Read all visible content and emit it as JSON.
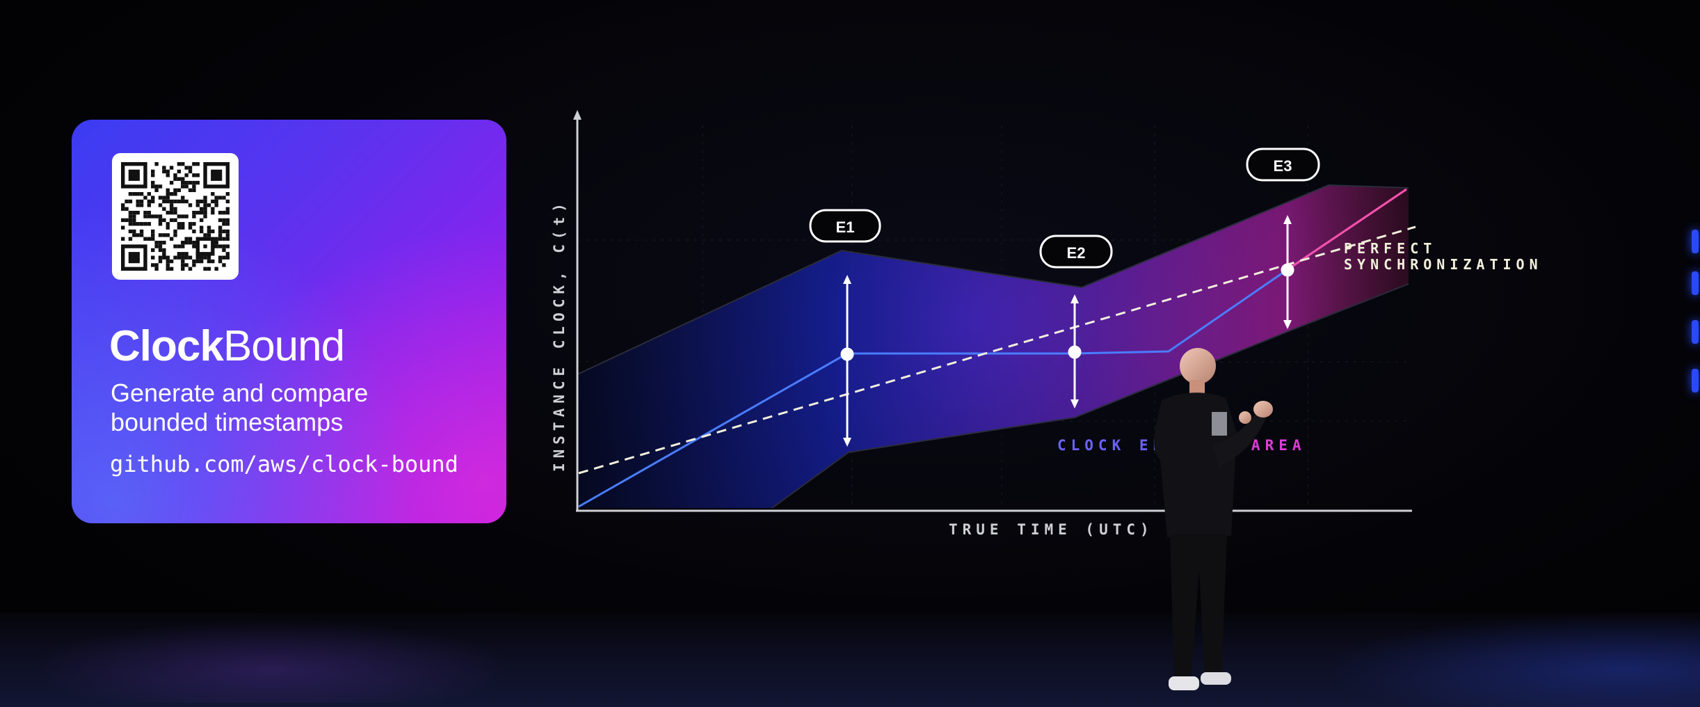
{
  "card": {
    "title_bold": "Clock",
    "title_regular": "Bound",
    "subtitle_line1": "Generate and compare",
    "subtitle_line2": "bounded timestamps",
    "link": "github.com/aws/clock-bound",
    "qr_icon": "qr-code-icon",
    "colors": {
      "gradient_start": "#3b3df2",
      "gradient_end": "#b118e6"
    }
  },
  "diagram": {
    "y_axis_label": "INSTANCE CLOCK, C(t)",
    "x_axis_label": "TRUE TIME (UTC)",
    "events": [
      {
        "label": "E1"
      },
      {
        "label": "E2"
      },
      {
        "label": "E3"
      }
    ],
    "perfect_sync_label_line1": "PERFECT",
    "perfect_sync_label_line2": "SYNCHRONIZATION",
    "area_label_left": "CLOCK ER",
    "area_label_right": "ND AREA",
    "colors": {
      "instance_clock": "#4a7dff",
      "perfect_sync": "#f2f0dc",
      "area_blue": "#2b3cf0",
      "area_magenta": "#d02ad0",
      "event_marker": "#ffffff"
    }
  }
}
